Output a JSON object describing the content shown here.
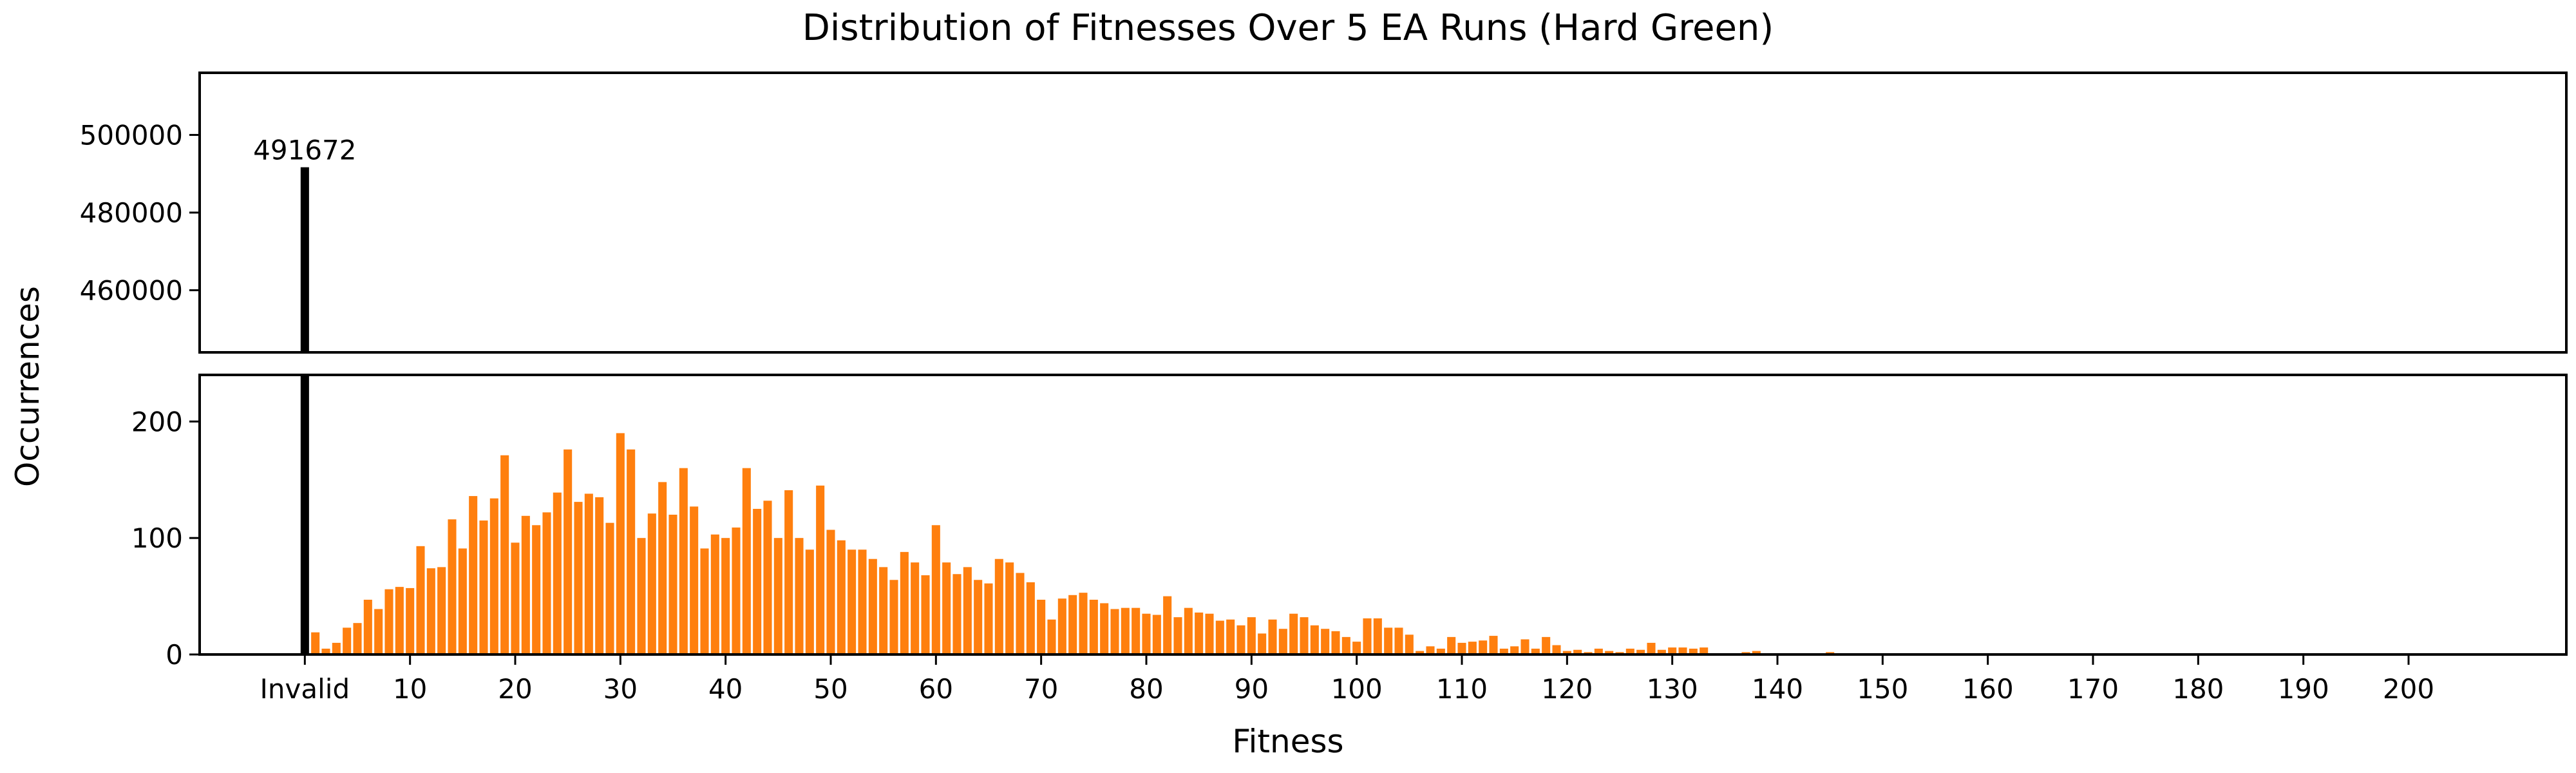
{
  "chart_data": {
    "type": "bar",
    "title": "Distribution of Fitnesses Over 5 EA Runs (Hard Green)",
    "xlabel": "Fitness",
    "ylabel": "Occurrences",
    "x_tick_labels": [
      "Invalid",
      "10",
      "20",
      "30",
      "40",
      "50",
      "60",
      "70",
      "80",
      "90",
      "100",
      "110",
      "120",
      "130",
      "140",
      "150",
      "160",
      "170",
      "180",
      "190",
      "200"
    ],
    "x_ticks": [
      0,
      10,
      20,
      30,
      40,
      50,
      60,
      70,
      80,
      90,
      100,
      110,
      120,
      130,
      140,
      150,
      160,
      170,
      180,
      190,
      200
    ],
    "xlim": [
      -10,
      215
    ],
    "invalid": {
      "label": "Invalid",
      "value": 491672,
      "color": "#000000",
      "annotation": "491672"
    },
    "top_panel": {
      "ylim": [
        444000,
        516000
      ],
      "yticks": [
        460000,
        480000,
        500000
      ]
    },
    "bottom_panel": {
      "ylim": [
        0,
        240
      ],
      "yticks": [
        0,
        100,
        200
      ]
    },
    "bar_color": "#ff7f0e",
    "grid": false,
    "series": [
      {
        "start_fitness": 1,
        "values": [
          19,
          5,
          10,
          23,
          27,
          47,
          39,
          56,
          58,
          57,
          93,
          74,
          75,
          116,
          91,
          136,
          115,
          134,
          171,
          96,
          119,
          111,
          122,
          139,
          176,
          131,
          138,
          135,
          113,
          190,
          176,
          100,
          121,
          148,
          120,
          160,
          127,
          91,
          103,
          100,
          109,
          160,
          125,
          132,
          100,
          141,
          100,
          90,
          145,
          107,
          98,
          90,
          90,
          82,
          75,
          64,
          88,
          79,
          68,
          111,
          79,
          69,
          75,
          64,
          61,
          82,
          79,
          70,
          62,
          47,
          30,
          48,
          51,
          53,
          47,
          44,
          39,
          40,
          40,
          35,
          34,
          50,
          32,
          40,
          36,
          35,
          29,
          30,
          25,
          32,
          18,
          30,
          22,
          35,
          32,
          25,
          22,
          20,
          15,
          11,
          31,
          31,
          23,
          23,
          17,
          3,
          7,
          5,
          15,
          10,
          11,
          12,
          16,
          5,
          7,
          13,
          5,
          15,
          8,
          3,
          4,
          2,
          5,
          3,
          2,
          5,
          4,
          10,
          4,
          6,
          6,
          5,
          6,
          0,
          0,
          0,
          2,
          3,
          0,
          1,
          1,
          1,
          0,
          0,
          2,
          0,
          0,
          0,
          1,
          0,
          0,
          0,
          1
        ]
      }
    ]
  }
}
